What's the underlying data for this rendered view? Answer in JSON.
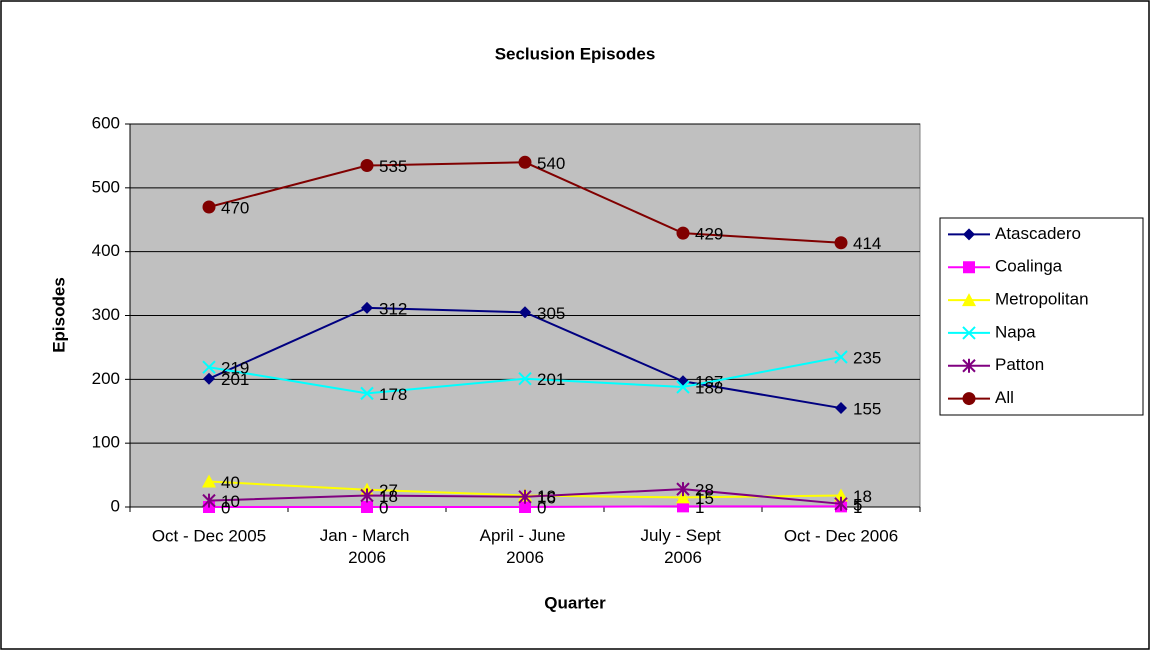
{
  "chart_data": {
    "type": "line",
    "title": "Seclusion Episodes",
    "x_label": "Quarter",
    "y_label": "Episodes",
    "categories": [
      "Oct - Dec 2005",
      "Jan - March 2006",
      "April - June 2006",
      "July - Sept 2006",
      "Oct - Dec 2006"
    ],
    "ylim": [
      0,
      600
    ],
    "yticks": [
      0,
      100,
      200,
      300,
      400,
      500,
      600
    ],
    "grid": true,
    "legend": "right",
    "series": [
      {
        "name": "Atascadero",
        "color": "#000080",
        "marker": "diamond",
        "values": [
          201,
          312,
          305,
          197,
          155
        ]
      },
      {
        "name": "Coalinga",
        "color": "#ff00ff",
        "marker": "square",
        "values": [
          0,
          0,
          0,
          1,
          1
        ]
      },
      {
        "name": "Metropolitan",
        "color": "#ffff00",
        "marker": "triangle",
        "values": [
          40,
          27,
          18,
          15,
          18
        ]
      },
      {
        "name": "Napa",
        "color": "#00ffff",
        "marker": "x",
        "values": [
          219,
          178,
          201,
          188,
          235
        ]
      },
      {
        "name": "Patton",
        "color": "#800080",
        "marker": "asterisk",
        "values": [
          10,
          18,
          16,
          28,
          5
        ]
      },
      {
        "name": "All",
        "color": "#800000",
        "marker": "circle",
        "values": [
          470,
          535,
          540,
          429,
          414
        ]
      }
    ]
  }
}
